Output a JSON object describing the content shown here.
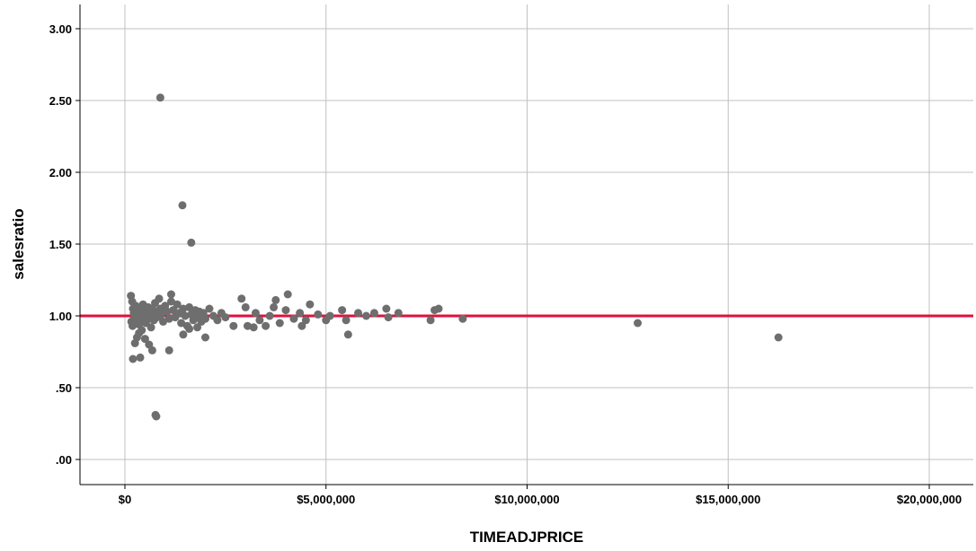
{
  "chart_data": {
    "type": "scatter",
    "title": "",
    "xlabel": "TIMEADJPRICE",
    "ylabel": "salesratio",
    "xlim": [
      -500000,
      21000000
    ],
    "ylim": [
      -0.1,
      3.12
    ],
    "x_ticks": [
      0,
      5000000,
      10000000,
      15000000,
      20000000
    ],
    "x_tick_labels": [
      "$0",
      "$5,000,000",
      "$10,000,000",
      "$15,000,000",
      "$20,000,000"
    ],
    "y_ticks": [
      0,
      0.5,
      1.0,
      1.5,
      2.0,
      2.5,
      3.0
    ],
    "y_tick_labels": [
      ".00",
      ".50",
      "1.00",
      "1.50",
      "2.00",
      "2.50",
      "3.00"
    ],
    "grid": true,
    "reference_line": {
      "y": 1.0,
      "color": "#e0103c"
    },
    "point_color": "#6e6e6e",
    "series": [
      {
        "points": [
          [
            150000,
            1.14
          ],
          [
            180000,
            1.1
          ],
          [
            200000,
            1.05
          ],
          [
            220000,
            1.02
          ],
          [
            250000,
            0.99
          ],
          [
            160000,
            0.96
          ],
          [
            190000,
            0.93
          ],
          [
            230000,
            0.98
          ],
          [
            270000,
            1.07
          ],
          [
            300000,
            1.01
          ],
          [
            320000,
            0.97
          ],
          [
            350000,
            0.94
          ],
          [
            380000,
            1.04
          ],
          [
            400000,
            1.0
          ],
          [
            420000,
            0.96
          ],
          [
            450000,
            1.08
          ],
          [
            480000,
            1.03
          ],
          [
            500000,
            0.99
          ],
          [
            520000,
            0.95
          ],
          [
            550000,
            1.02
          ],
          [
            580000,
            1.06
          ],
          [
            600000,
            0.98
          ],
          [
            620000,
            1.01
          ],
          [
            650000,
            0.92
          ],
          [
            680000,
            1.05
          ],
          [
            700000,
            1.0
          ],
          [
            720000,
            0.97
          ],
          [
            750000,
            1.09
          ],
          [
            780000,
            1.03
          ],
          [
            800000,
            0.99
          ],
          [
            850000,
            1.12
          ],
          [
            880000,
            1.05
          ],
          [
            900000,
            1.01
          ],
          [
            950000,
            0.96
          ],
          [
            1000000,
            1.07
          ],
          [
            1050000,
            1.03
          ],
          [
            1100000,
            0.98
          ],
          [
            1150000,
            1.1
          ],
          [
            1200000,
            1.04
          ],
          [
            1250000,
            0.99
          ],
          [
            1300000,
            1.08
          ],
          [
            1350000,
            1.02
          ],
          [
            1400000,
            0.95
          ],
          [
            1450000,
            1.05
          ],
          [
            1500000,
            1.0
          ],
          [
            1550000,
            0.93
          ],
          [
            1600000,
            1.06
          ],
          [
            1650000,
            1.01
          ],
          [
            1700000,
            0.97
          ],
          [
            1750000,
            1.04
          ],
          [
            1800000,
            0.99
          ],
          [
            1850000,
            1.03
          ],
          [
            1900000,
            0.96
          ],
          [
            1950000,
            1.02
          ],
          [
            2000000,
            0.98
          ],
          [
            2100000,
            1.05
          ],
          [
            2200000,
            1.0
          ],
          [
            2300000,
            0.97
          ],
          [
            2400000,
            1.02
          ],
          [
            2500000,
            0.99
          ],
          [
            250000,
            0.81
          ],
          [
            300000,
            0.85
          ],
          [
            350000,
            0.88
          ],
          [
            420000,
            0.9
          ],
          [
            500000,
            0.84
          ],
          [
            600000,
            0.8
          ],
          [
            680000,
            0.76
          ],
          [
            200000,
            0.7
          ],
          [
            380000,
            0.71
          ],
          [
            1100000,
            0.76
          ],
          [
            1450000,
            0.87
          ],
          [
            2000000,
            0.85
          ],
          [
            1600000,
            0.91
          ],
          [
            1800000,
            0.92
          ],
          [
            760000,
            0.31
          ],
          [
            780000,
            0.3
          ],
          [
            880000,
            2.52
          ],
          [
            1430000,
            1.77
          ],
          [
            1650000,
            1.51
          ],
          [
            1150000,
            1.15
          ],
          [
            2700000,
            0.93
          ],
          [
            2900000,
            1.12
          ],
          [
            3000000,
            1.06
          ],
          [
            3050000,
            0.93
          ],
          [
            3200000,
            0.92
          ],
          [
            3250000,
            1.02
          ],
          [
            3350000,
            0.97
          ],
          [
            3500000,
            0.93
          ],
          [
            3600000,
            1.0
          ],
          [
            3700000,
            1.06
          ],
          [
            3750000,
            1.11
          ],
          [
            3850000,
            0.95
          ],
          [
            4000000,
            1.04
          ],
          [
            4050000,
            1.15
          ],
          [
            4200000,
            0.98
          ],
          [
            4350000,
            1.02
          ],
          [
            4400000,
            0.93
          ],
          [
            4500000,
            0.97
          ],
          [
            4600000,
            1.08
          ],
          [
            4800000,
            1.01
          ],
          [
            5000000,
            0.97
          ],
          [
            5100000,
            1.0
          ],
          [
            5400000,
            1.04
          ],
          [
            5500000,
            0.97
          ],
          [
            5550000,
            0.87
          ],
          [
            5800000,
            1.02
          ],
          [
            6000000,
            1.0
          ],
          [
            6200000,
            1.02
          ],
          [
            6500000,
            1.05
          ],
          [
            6550000,
            0.99
          ],
          [
            6800000,
            1.02
          ],
          [
            7600000,
            0.97
          ],
          [
            7700000,
            1.04
          ],
          [
            7800000,
            1.05
          ],
          [
            8400000,
            0.98
          ],
          [
            12750000,
            0.95
          ],
          [
            16250000,
            0.85
          ]
        ]
      }
    ]
  }
}
